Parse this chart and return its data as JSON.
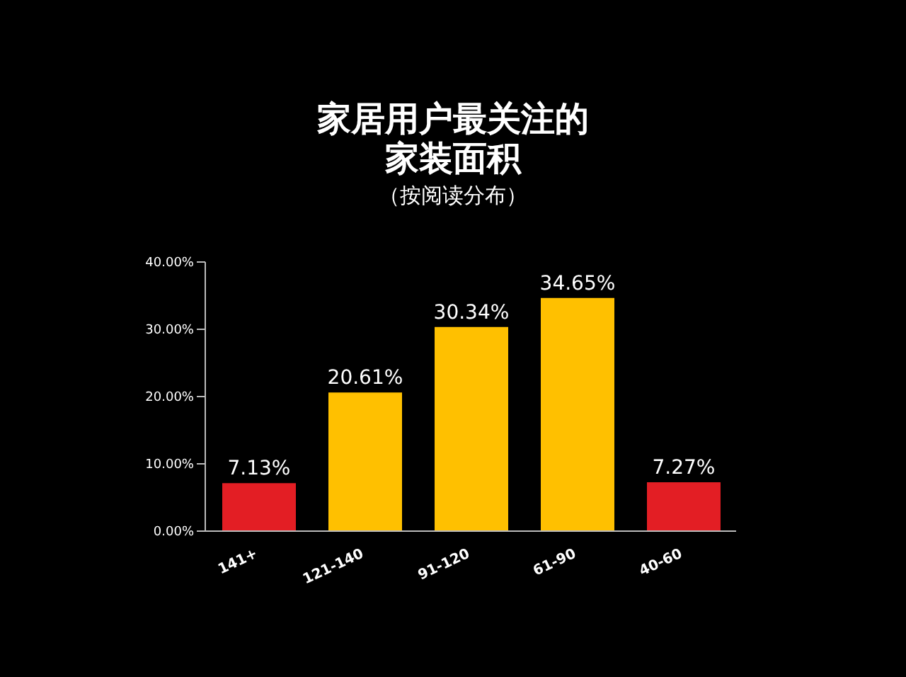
{
  "chart_data": {
    "type": "bar",
    "title": "家居用户最关注的家装面积",
    "subtitle": "（按阅读分布）",
    "categories": [
      "141+",
      "121-140",
      "91-120",
      "61-90",
      "40-60"
    ],
    "values": [
      7.13,
      20.61,
      30.34,
      34.65,
      7.27
    ],
    "colors": [
      "#e31e24",
      "#ffc000",
      "#ffc000",
      "#ffc000",
      "#e31e24"
    ],
    "value_labels": [
      "7.13%",
      "20.61%",
      "30.34%",
      "34.65%",
      "7.27%"
    ],
    "ylim": [
      0,
      40
    ],
    "yticks": [
      {
        "value": 0,
        "label": "0.00%"
      },
      {
        "value": 10,
        "label": "10.00%"
      },
      {
        "value": 20,
        "label": "20.00%"
      },
      {
        "value": 30,
        "label": "30.00%"
      },
      {
        "value": 40,
        "label": "40.00%"
      }
    ],
    "grid": false,
    "legend": false
  }
}
